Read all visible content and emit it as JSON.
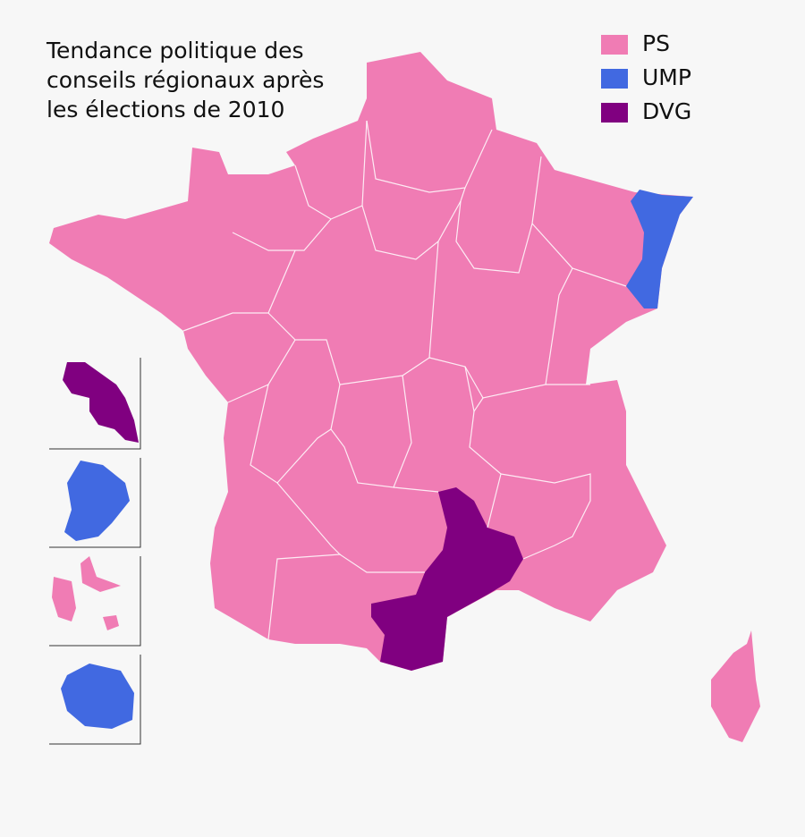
{
  "title_lines": [
    "Tendance politique des",
    "conseils régionaux après",
    "les élections de 2010"
  ],
  "legend": [
    {
      "label": "PS",
      "color": "#f07cb4"
    },
    {
      "label": "UMP",
      "color": "#4169e1"
    },
    {
      "label": "DVG",
      "color": "#800080"
    }
  ]
}
